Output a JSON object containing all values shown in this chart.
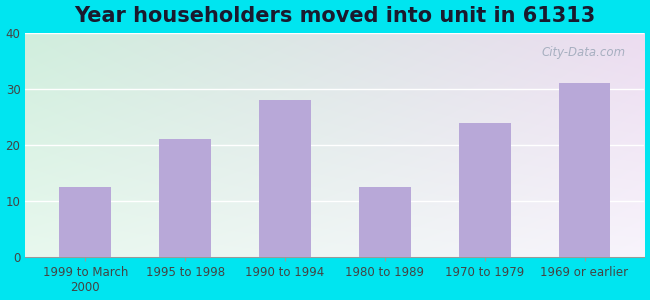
{
  "title": "Year householders moved into unit in 61313",
  "categories": [
    "1999 to March\n2000",
    "1995 to 1998",
    "1990 to 1994",
    "1980 to 1989",
    "1970 to 1979",
    "1969 or earlier"
  ],
  "values": [
    12.5,
    21.0,
    28.0,
    12.5,
    24.0,
    31.0
  ],
  "bar_color": "#b8a8d8",
  "ylim": [
    0,
    40
  ],
  "yticks": [
    0,
    10,
    20,
    30,
    40
  ],
  "bg_outer": "#00e5f0",
  "grad_color_topleft": "#e8f8ee",
  "grad_color_topright": "#f8f4fc",
  "grad_color_bottomleft": "#d0eedd",
  "grad_color_bottomright": "#ecdcf0",
  "title_fontsize": 15,
  "tick_fontsize": 8.5,
  "watermark": "City-Data.com"
}
